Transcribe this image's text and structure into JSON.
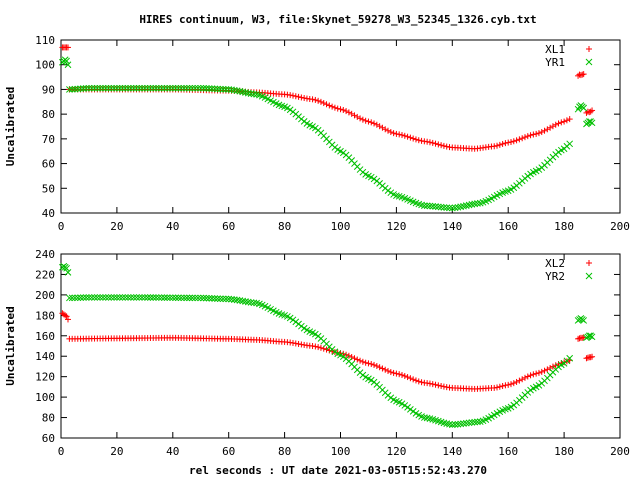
{
  "title": "HIRES continuum, W3, file:Skynet_59278_W3_52345_1326.cyb.txt",
  "xlabel": "rel seconds : UT date 2021-03-05T15:52:43.270",
  "colors": {
    "series_1": "#ff0000",
    "series_2": "#00c000",
    "axis": "#000000",
    "grid": "#a0a0a0"
  },
  "chart_data": [
    {
      "type": "scatter",
      "title": "HIRES continuum, W3, file:Skynet_59278_W3_52345_1326.cyb.txt",
      "xlabel": "",
      "ylabel": "Uncalibrated",
      "xlim": [
        0,
        200
      ],
      "ylim": [
        40,
        110
      ],
      "xticks": [
        0,
        20,
        40,
        60,
        80,
        100,
        120,
        140,
        160,
        180,
        200
      ],
      "yticks": [
        40,
        50,
        60,
        70,
        80,
        90,
        100,
        110
      ],
      "grid": false,
      "legend_position": "top-right",
      "series": [
        {
          "name": "XL1",
          "marker": "+",
          "color": "#ff0000",
          "points": [
            [
              0.5,
              107
            ],
            [
              1,
              107
            ],
            [
              1.5,
              107
            ],
            [
              2,
              107
            ],
            [
              2.5,
              107
            ],
            [
              185,
              95.5
            ],
            [
              185.5,
              96
            ],
            [
              186,
              95.8
            ],
            [
              186.5,
              96
            ],
            [
              187,
              96.2
            ],
            [
              188,
              80.5
            ],
            [
              188.5,
              81
            ],
            [
              189,
              80.8
            ],
            [
              189.5,
              81
            ],
            [
              190,
              81.5
            ]
          ],
          "curve": {
            "x_start": 3,
            "x_end": 182,
            "step": 1,
            "knots": [
              [
                3,
                90
              ],
              [
                20,
                90
              ],
              [
                40,
                90
              ],
              [
                60,
                89.5
              ],
              [
                70,
                88.8
              ],
              [
                80,
                88
              ],
              [
                90,
                86
              ],
              [
                100,
                82
              ],
              [
                110,
                77
              ],
              [
                120,
                72
              ],
              [
                130,
                69
              ],
              [
                140,
                66.5
              ],
              [
                148,
                66
              ],
              [
                155,
                67
              ],
              [
                160,
                68.5
              ],
              [
                170,
                72
              ],
              [
                180,
                77
              ],
              [
                182,
                78
              ]
            ]
          }
        },
        {
          "name": "YR1",
          "marker": "x",
          "color": "#00c000",
          "points": [
            [
              0.5,
              101
            ],
            [
              1,
              101.5
            ],
            [
              1.5,
              102
            ],
            [
              2,
              101.5
            ],
            [
              2.5,
              100
            ],
            [
              185,
              82
            ],
            [
              185.5,
              83
            ],
            [
              186,
              83.5
            ],
            [
              186.5,
              83
            ],
            [
              187,
              82.5
            ],
            [
              188,
              76
            ],
            [
              188.5,
              76.5
            ],
            [
              189,
              77
            ],
            [
              189.5,
              77
            ],
            [
              190,
              76.5
            ]
          ],
          "curve": {
            "x_start": 3,
            "x_end": 182,
            "step": 1,
            "knots": [
              [
                3,
                90
              ],
              [
                10,
                90.5
              ],
              [
                30,
                90.5
              ],
              [
                50,
                90.5
              ],
              [
                60,
                90
              ],
              [
                70,
                88
              ],
              [
                80,
                83
              ],
              [
                90,
                75
              ],
              [
                100,
                65
              ],
              [
                110,
                55
              ],
              [
                120,
                47
              ],
              [
                130,
                43
              ],
              [
                140,
                42
              ],
              [
                150,
                44
              ],
              [
                160,
                49
              ],
              [
                170,
                57
              ],
              [
                180,
                66
              ],
              [
                182,
                68
              ]
            ]
          }
        }
      ]
    },
    {
      "type": "scatter",
      "xlabel": "rel seconds : UT date 2021-03-05T15:52:43.270",
      "ylabel": "Uncalibrated",
      "xlim": [
        0,
        200
      ],
      "ylim": [
        60,
        240
      ],
      "xticks": [
        0,
        20,
        40,
        60,
        80,
        100,
        120,
        140,
        160,
        180,
        200
      ],
      "yticks": [
        60,
        80,
        100,
        120,
        140,
        160,
        180,
        200,
        220,
        240
      ],
      "grid": false,
      "legend_position": "top-right",
      "series": [
        {
          "name": "XL2",
          "marker": "+",
          "color": "#ff0000",
          "points": [
            [
              0.5,
              182
            ],
            [
              1,
              181
            ],
            [
              1.5,
              180
            ],
            [
              2,
              179
            ],
            [
              2.5,
              176
            ],
            [
              185,
              157
            ],
            [
              185.5,
              157.5
            ],
            [
              186,
              158
            ],
            [
              186.5,
              158
            ],
            [
              187,
              158.5
            ],
            [
              188,
              138
            ],
            [
              188.5,
              138.5
            ],
            [
              189,
              139
            ],
            [
              189.5,
              139
            ],
            [
              190,
              139.5
            ]
          ],
          "curve": {
            "x_start": 3,
            "x_end": 182,
            "step": 1,
            "knots": [
              [
                3,
                157
              ],
              [
                20,
                157.5
              ],
              [
                40,
                158
              ],
              [
                60,
                157
              ],
              [
                70,
                156
              ],
              [
                80,
                154
              ],
              [
                90,
                150
              ],
              [
                100,
                143
              ],
              [
                110,
                133
              ],
              [
                120,
                123
              ],
              [
                130,
                114
              ],
              [
                140,
                109
              ],
              [
                148,
                108
              ],
              [
                155,
                109
              ],
              [
                160,
                112
              ],
              [
                170,
                123
              ],
              [
                180,
                134
              ],
              [
                182,
                136
              ]
            ]
          }
        },
        {
          "name": "YR2",
          "marker": "x",
          "color": "#00c000",
          "points": [
            [
              0.5,
              227
            ],
            [
              1,
              228
            ],
            [
              1.5,
              227
            ],
            [
              2,
              226
            ],
            [
              2.5,
              222
            ],
            [
              185,
              175
            ],
            [
              185.5,
              176
            ],
            [
              186,
              177
            ],
            [
              186.5,
              176
            ],
            [
              187,
              175
            ],
            [
              188,
              158
            ],
            [
              188.5,
              159
            ],
            [
              189,
              160
            ],
            [
              189.5,
              160
            ],
            [
              190,
              159
            ]
          ],
          "curve": {
            "x_start": 3,
            "x_end": 182,
            "step": 1,
            "knots": [
              [
                3,
                197
              ],
              [
                10,
                197.5
              ],
              [
                30,
                197.5
              ],
              [
                50,
                197
              ],
              [
                60,
                196
              ],
              [
                70,
                192
              ],
              [
                80,
                180
              ],
              [
                90,
                163
              ],
              [
                100,
                141
              ],
              [
                110,
                118
              ],
              [
                120,
                96
              ],
              [
                130,
                80
              ],
              [
                140,
                73
              ],
              [
                150,
                76
              ],
              [
                160,
                89
              ],
              [
                170,
                110
              ],
              [
                180,
                133
              ],
              [
                182,
                138
              ]
            ]
          }
        }
      ]
    }
  ]
}
